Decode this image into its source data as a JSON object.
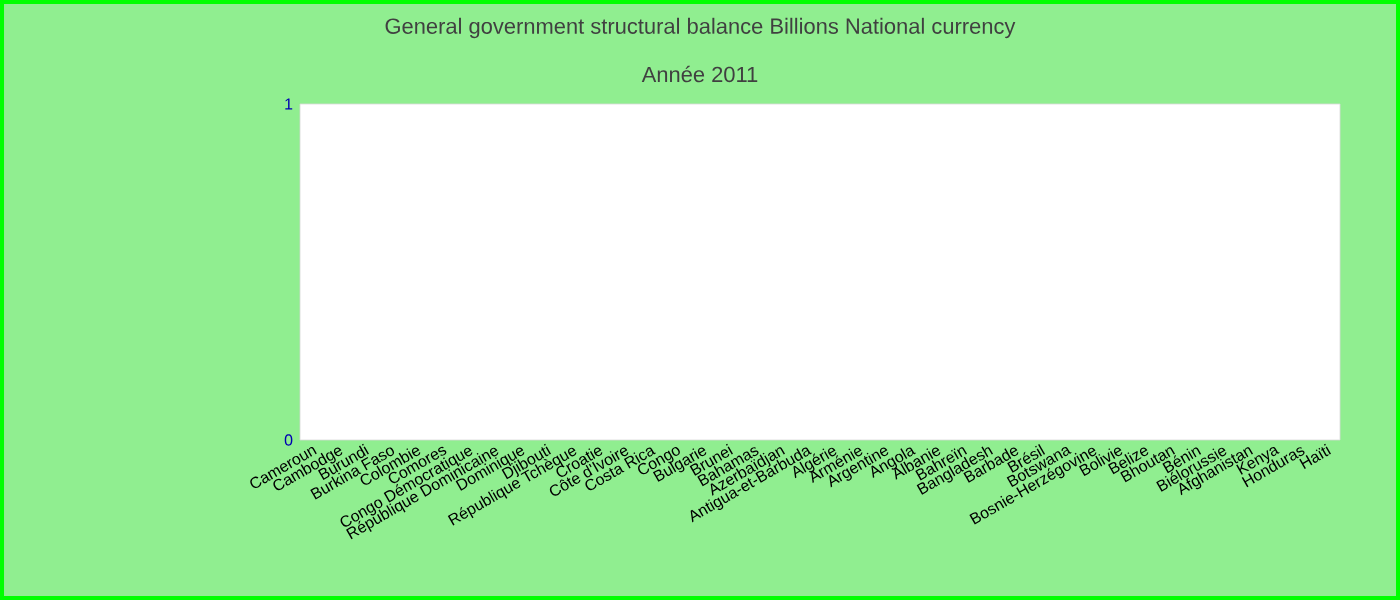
{
  "chart_data": {
    "type": "bar",
    "title": "General government structural balance Billions National currency",
    "subtitle": "Année 2011",
    "categories": [
      "Cameroun",
      "Cambodge",
      "Burundi",
      "Burkina Faso",
      "Colombie",
      "Comores",
      "Congo Démocratique",
      "République Dominicaine",
      "Dominique",
      "Djibouti",
      "République Tchèque",
      "Croatie",
      "Côte d'Ivoire",
      "Costa Rica",
      "Congo",
      "Bulgarie",
      "Brunei",
      "Bahamas",
      "Azerbaïdjan",
      "Antigua-et-Barbuda",
      "Algérie",
      "Arménie",
      "Argentine",
      "Angola",
      "Albanie",
      "Bahreïn",
      "Bangladesh",
      "Barbade",
      "Brésil",
      "Botswana",
      "Bosnie-Herzégovine",
      "Bolivie",
      "Belize",
      "Bhoutan",
      "Bénin",
      "Biélorussie",
      "Afghanistan",
      "Kenya",
      "Honduras",
      "Haïti"
    ],
    "values": [
      0,
      0,
      0,
      0,
      0,
      0,
      0,
      0,
      0,
      0,
      0,
      0,
      0,
      0,
      0,
      0,
      0,
      0,
      0,
      0,
      0,
      0,
      0,
      0,
      0,
      0,
      0,
      0,
      0,
      0,
      0,
      0,
      0,
      0,
      0,
      0,
      0,
      0,
      0,
      0
    ],
    "ylim": [
      0,
      1
    ],
    "yticks": [
      0,
      1
    ]
  }
}
